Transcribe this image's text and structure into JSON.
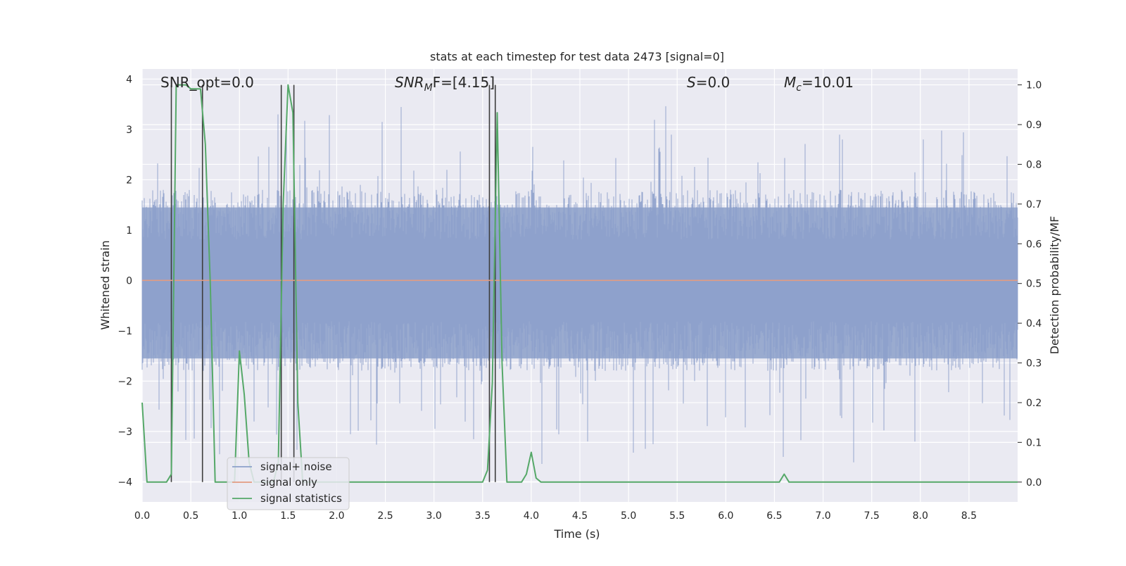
{
  "chart_data": {
    "type": "line",
    "title": "stats at each timestep for test data 2473 [signal=0]",
    "xlabel": "Time (s)",
    "ylabel": "Whitened strain",
    "y2label": "Detection probability/MF",
    "xlim": [
      0,
      9.0
    ],
    "ylim": [
      -4.4,
      4.2
    ],
    "y2lim": [
      -0.05,
      1.04
    ],
    "x_ticks": [
      "0.0",
      "0.5",
      "1.0",
      "1.5",
      "2.0",
      "2.5",
      "3.0",
      "3.5",
      "4.0",
      "4.5",
      "5.0",
      "5.5",
      "6.0",
      "6.5",
      "7.0",
      "7.5",
      "8.0",
      "8.5"
    ],
    "y_ticks": [
      "4",
      "3",
      "2",
      "1",
      "0",
      "−1",
      "−2",
      "−3",
      "−4"
    ],
    "y2_ticks": [
      "1.0",
      "0.9",
      "0.8",
      "0.7",
      "0.6",
      "0.5",
      "0.4",
      "0.3",
      "0.2",
      "0.1",
      "0.0"
    ],
    "grid": true,
    "legend_position": "lower-left",
    "legend": [
      {
        "label": "signal+ noise",
        "color": "#8da0cb"
      },
      {
        "label": "signal only",
        "color": "#e39c82"
      },
      {
        "label": "signal statistics",
        "color": "#55a868"
      }
    ],
    "annotations": {
      "snr_opt": "SNR_opt=0.0",
      "snr_mf_main": "SNR",
      "snr_mf_sub": "M",
      "snr_mf_rest": "F=[4.15]",
      "s_main": "S",
      "s_rest": "=0.0",
      "mc_main": "M",
      "mc_sub": "c",
      "mc_rest": "=10.01"
    },
    "noise": {
      "description": "whitened noise band",
      "typical_range": [
        -1.8,
        1.8
      ],
      "peak_max": 3.8,
      "peak_min": -3.7
    },
    "signal_only": {
      "value": 0.0
    },
    "statistics_series": {
      "x": [
        0.0,
        0.05,
        0.1,
        0.15,
        0.2,
        0.25,
        0.3,
        0.35,
        0.4,
        0.45,
        0.5,
        0.55,
        0.6,
        0.65,
        0.7,
        0.75,
        0.8,
        0.85,
        0.9,
        0.95,
        1.0,
        1.05,
        1.1,
        1.15,
        1.2,
        1.25,
        1.3,
        1.35,
        1.4,
        1.45,
        1.5,
        1.55,
        1.6,
        1.65,
        1.7,
        1.75,
        1.8,
        1.9,
        2.0,
        2.5,
        3.0,
        3.5,
        3.55,
        3.6,
        3.65,
        3.7,
        3.75,
        3.8,
        3.85,
        3.9,
        3.95,
        4.0,
        4.05,
        4.1,
        4.15,
        4.2,
        4.5,
        5.0,
        5.5,
        6.0,
        6.5,
        6.55,
        6.6,
        6.65,
        6.7,
        6.75,
        7.0,
        7.5,
        8.0,
        8.5,
        8.6,
        8.7,
        9.0
      ],
      "y": [
        0.2,
        0.0,
        0.0,
        0.0,
        0.0,
        0.0,
        0.02,
        1.0,
        1.0,
        1.0,
        0.99,
        0.99,
        0.99,
        0.85,
        0.5,
        0.0,
        0.0,
        0.0,
        0.0,
        0.0,
        0.33,
        0.22,
        0.05,
        0.0,
        0.0,
        0.0,
        0.0,
        0.0,
        0.05,
        0.7,
        1.0,
        0.93,
        0.2,
        0.0,
        0.0,
        0.0,
        0.0,
        0.0,
        0.0,
        0.0,
        0.0,
        0.0,
        0.03,
        0.25,
        0.93,
        0.3,
        0.0,
        0.0,
        0.0,
        0.0,
        0.02,
        0.075,
        0.01,
        0.0,
        0.0,
        0.0,
        0.0,
        0.0,
        0.0,
        0.0,
        0.0,
        0.0,
        0.02,
        0.0,
        0.0,
        0.0,
        0.0,
        0.0,
        0.0,
        0.0,
        0.0,
        0.0,
        0.0
      ]
    },
    "markers": [
      0.3,
      0.62,
      1.43,
      1.56,
      3.57,
      3.63
    ]
  }
}
